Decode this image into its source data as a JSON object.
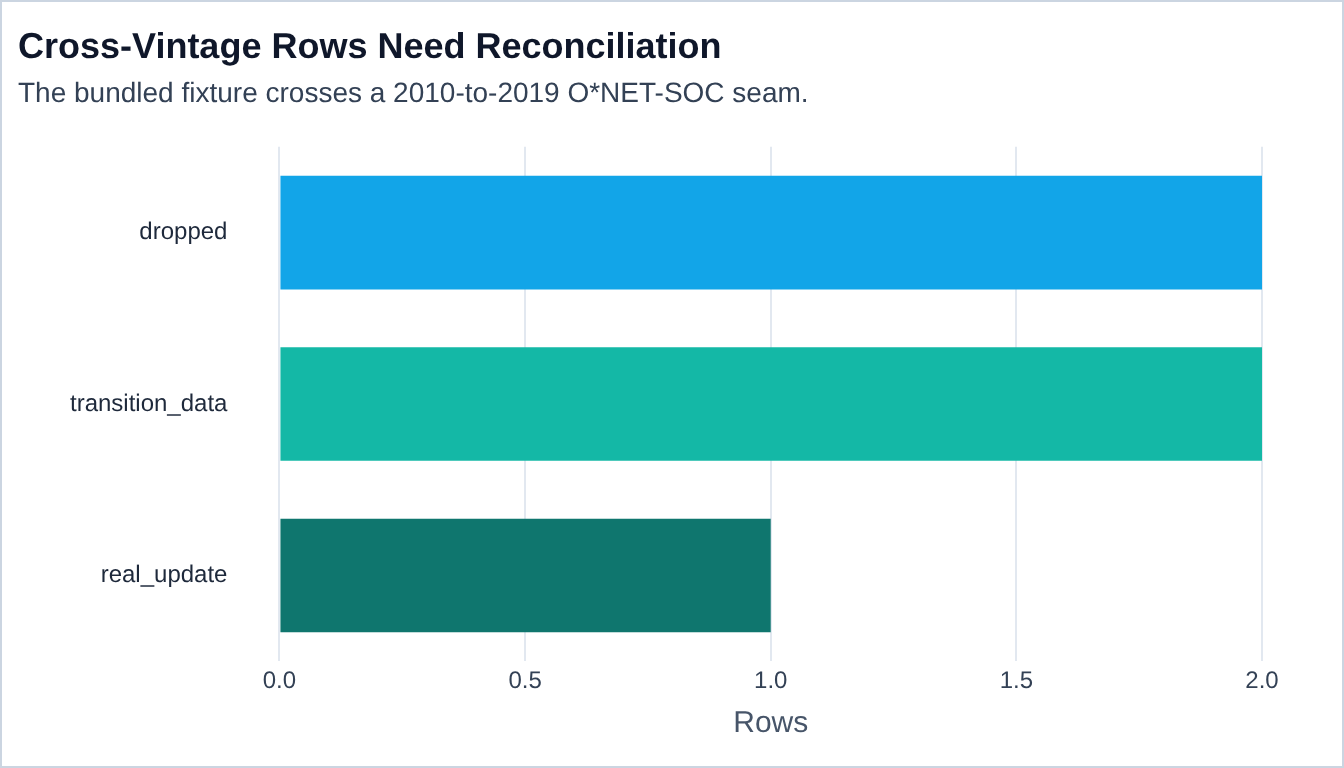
{
  "chart_data": {
    "type": "bar",
    "orientation": "horizontal",
    "title": "Cross-Vintage Rows Need Reconciliation",
    "subtitle": "The bundled fixture crosses a 2010-to-2019 O*NET-SOC seam.",
    "xlabel": "Rows",
    "categories": [
      "dropped",
      "transition_data",
      "real_update"
    ],
    "values": [
      2,
      2,
      1
    ],
    "colors": [
      "#12a5e8",
      "#14b8a6",
      "#0f766e"
    ],
    "xlim": [
      0,
      2
    ],
    "xticks": [
      {
        "value": 0,
        "label": "0.0"
      },
      {
        "value": 0.5,
        "label": "0.5"
      },
      {
        "value": 1,
        "label": "1.0"
      },
      {
        "value": 1.5,
        "label": "1.5"
      },
      {
        "value": 2,
        "label": "2.0"
      }
    ],
    "grid": "x"
  }
}
